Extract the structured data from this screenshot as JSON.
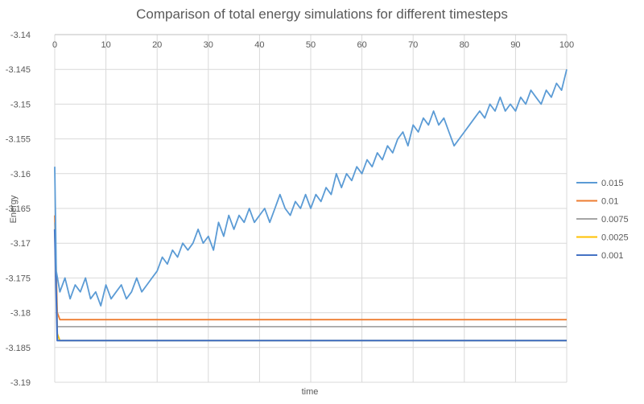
{
  "chart_data": {
    "type": "line",
    "title": "Comparison of total energy simulations for different timesteps",
    "xlabel": "time",
    "ylabel": "Energy",
    "xlim": [
      0,
      100
    ],
    "ylim": [
      -3.19,
      -3.14
    ],
    "x_ticks": [
      "0",
      "10",
      "20",
      "30",
      "40",
      "50",
      "60",
      "70",
      "80",
      "90",
      "100"
    ],
    "y_ticks": [
      "-3.14",
      "-3.145",
      "-3.15",
      "-3.155",
      "-3.16",
      "-3.165",
      "-3.17",
      "-3.175",
      "-3.18",
      "-3.185",
      "-3.19"
    ],
    "grid": true,
    "legend_position": "right",
    "series": [
      {
        "name": "0.015",
        "color": "#5b9bd5",
        "x": [
          0,
          0.3,
          1,
          2,
          3,
          4,
          5,
          6,
          7,
          8,
          9,
          10,
          11,
          12,
          13,
          14,
          15,
          16,
          17,
          18,
          19,
          20,
          21,
          22,
          23,
          24,
          25,
          26,
          27,
          28,
          29,
          30,
          31,
          32,
          33,
          34,
          35,
          36,
          37,
          38,
          39,
          40,
          41,
          42,
          43,
          44,
          45,
          46,
          47,
          48,
          49,
          50,
          51,
          52,
          53,
          54,
          55,
          56,
          57,
          58,
          59,
          60,
          61,
          62,
          63,
          64,
          65,
          66,
          67,
          68,
          69,
          70,
          71,
          72,
          73,
          74,
          75,
          76,
          77,
          78,
          79,
          80,
          81,
          82,
          83,
          84,
          85,
          86,
          87,
          88,
          89,
          90,
          91,
          92,
          93,
          94,
          95,
          96,
          97,
          98,
          99,
          100
        ],
        "values": [
          -3.159,
          -3.174,
          -3.177,
          -3.175,
          -3.178,
          -3.176,
          -3.177,
          -3.175,
          -3.178,
          -3.177,
          -3.179,
          -3.176,
          -3.178,
          -3.177,
          -3.176,
          -3.178,
          -3.177,
          -3.175,
          -3.177,
          -3.176,
          -3.175,
          -3.174,
          -3.172,
          -3.173,
          -3.171,
          -3.172,
          -3.17,
          -3.171,
          -3.17,
          -3.168,
          -3.17,
          -3.169,
          -3.171,
          -3.167,
          -3.169,
          -3.166,
          -3.168,
          -3.166,
          -3.167,
          -3.165,
          -3.167,
          -3.166,
          -3.165,
          -3.167,
          -3.165,
          -3.163,
          -3.165,
          -3.166,
          -3.164,
          -3.165,
          -3.163,
          -3.165,
          -3.163,
          -3.164,
          -3.162,
          -3.163,
          -3.16,
          -3.162,
          -3.16,
          -3.161,
          -3.159,
          -3.16,
          -3.158,
          -3.159,
          -3.157,
          -3.158,
          -3.156,
          -3.157,
          -3.155,
          -3.154,
          -3.156,
          -3.153,
          -3.154,
          -3.152,
          -3.153,
          -3.151,
          -3.153,
          -3.152,
          -3.154,
          -3.156,
          -3.155,
          -3.154,
          -3.153,
          -3.152,
          -3.151,
          -3.152,
          -3.15,
          -3.151,
          -3.149,
          -3.151,
          -3.15,
          -3.151,
          -3.149,
          -3.15,
          -3.148,
          -3.149,
          -3.15,
          -3.148,
          -3.149,
          -3.147,
          -3.148,
          -3.145
        ]
      },
      {
        "name": "0.01",
        "color": "#ed7d31",
        "x": [
          0,
          0.5,
          1,
          5,
          10,
          15,
          20,
          25,
          30,
          35,
          40,
          45,
          50,
          55,
          60,
          65,
          70,
          75,
          80,
          85,
          90,
          95,
          100
        ],
        "values": [
          -3.166,
          -3.18,
          -3.181,
          -3.181,
          -3.181,
          -3.181,
          -3.181,
          -3.181,
          -3.181,
          -3.181,
          -3.181,
          -3.181,
          -3.181,
          -3.181,
          -3.181,
          -3.181,
          -3.181,
          -3.181,
          -3.181,
          -3.181,
          -3.181,
          -3.181,
          -3.181
        ]
      },
      {
        "name": "0.0075",
        "color": "#a5a5a5",
        "x": [
          0,
          0.5,
          1,
          5,
          10,
          15,
          20,
          25,
          30,
          35,
          40,
          45,
          50,
          55,
          60,
          65,
          70,
          75,
          80,
          85,
          90,
          95,
          100
        ],
        "values": [
          -3.167,
          -3.182,
          -3.182,
          -3.182,
          -3.182,
          -3.182,
          -3.182,
          -3.182,
          -3.182,
          -3.182,
          -3.182,
          -3.182,
          -3.182,
          -3.182,
          -3.182,
          -3.182,
          -3.182,
          -3.182,
          -3.182,
          -3.182,
          -3.182,
          -3.182,
          -3.182
        ]
      },
      {
        "name": "0.0025",
        "color": "#ffc000",
        "x": [
          0,
          0.5,
          1,
          5,
          10,
          15,
          20,
          25,
          30,
          35,
          40,
          45,
          50,
          55,
          60,
          65,
          70,
          75,
          80,
          85,
          90,
          95,
          100
        ],
        "values": [
          -3.168,
          -3.183,
          -3.184,
          -3.184,
          -3.184,
          -3.184,
          -3.184,
          -3.184,
          -3.184,
          -3.184,
          -3.184,
          -3.184,
          -3.184,
          -3.184,
          -3.184,
          -3.184,
          -3.184,
          -3.184,
          -3.184,
          -3.184,
          -3.184,
          -3.184,
          -3.184
        ]
      },
      {
        "name": "0.001",
        "color": "#4472c4",
        "x": [
          0,
          0.5,
          1,
          5,
          10,
          15,
          20,
          25,
          30,
          35,
          40,
          45,
          50,
          55,
          60,
          65,
          70,
          75,
          80,
          85,
          90,
          95,
          100
        ],
        "values": [
          -3.168,
          -3.184,
          -3.184,
          -3.184,
          -3.184,
          -3.184,
          -3.184,
          -3.184,
          -3.184,
          -3.184,
          -3.184,
          -3.184,
          -3.184,
          -3.184,
          -3.184,
          -3.184,
          -3.184,
          -3.184,
          -3.184,
          -3.184,
          -3.184,
          -3.184,
          -3.184
        ]
      }
    ]
  }
}
